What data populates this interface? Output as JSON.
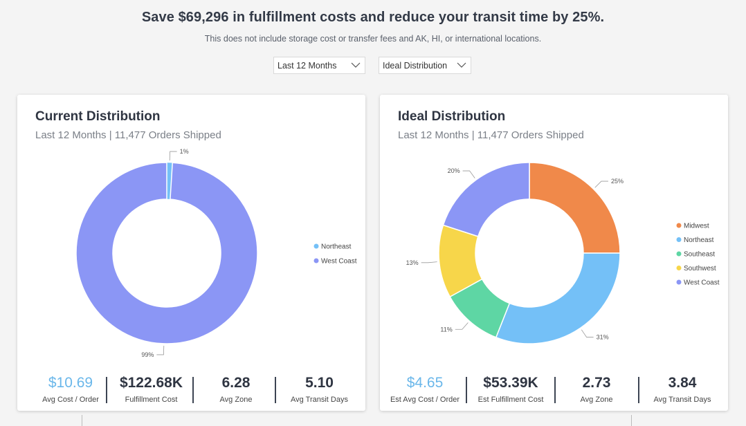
{
  "header": {
    "headline": "Save $69,296 in fulfillment costs and reduce your transit time by 25%.",
    "subline": "This does not include storage cost or transfer fees and AK, HI, or international locations."
  },
  "filters": {
    "period": "Last 12 Months",
    "distribution": "Ideal Distribution"
  },
  "current": {
    "title": "Current Distribution",
    "subtitle": "Last 12 Months | 11,477 Orders Shipped",
    "stats": [
      {
        "value": "$10.69",
        "label": "Avg Cost / Order"
      },
      {
        "value": "$122.68K",
        "label": "Fulfillment Cost"
      },
      {
        "value": "6.28",
        "label": "Avg Zone"
      },
      {
        "value": "5.10",
        "label": "Avg Transit Days"
      }
    ]
  },
  "ideal": {
    "title": "Ideal Distribution",
    "subtitle": "Last 12 Months | 11,477 Orders Shipped",
    "stats": [
      {
        "value": "$4.65",
        "label": "Est Avg Cost / Order"
      },
      {
        "value": "$53.39K",
        "label": "Est Fulfillment Cost"
      },
      {
        "value": "2.73",
        "label": "Avg Zone"
      },
      {
        "value": "3.84",
        "label": "Avg Transit Days"
      }
    ]
  },
  "colors": {
    "midwest": "#f0894a",
    "northeast": "#74c0f7",
    "southeast": "#5ed6a4",
    "southwest": "#f7d64a",
    "west_coast": "#8b96f5",
    "accent": "#6ab7ea"
  },
  "chart_data": [
    {
      "type": "pie",
      "title": "Current Distribution",
      "categories": [
        "Northeast",
        "West Coast"
      ],
      "values": [
        1,
        99
      ],
      "labels": [
        "1%",
        "99%"
      ],
      "legend": "right"
    },
    {
      "type": "pie",
      "title": "Ideal Distribution",
      "categories": [
        "Midwest",
        "Northeast",
        "Southeast",
        "Southwest",
        "West Coast"
      ],
      "values": [
        25,
        31,
        11,
        13,
        20
      ],
      "labels": [
        "25%",
        "31%",
        "11%",
        "13%",
        "20%"
      ],
      "legend": "right"
    }
  ]
}
